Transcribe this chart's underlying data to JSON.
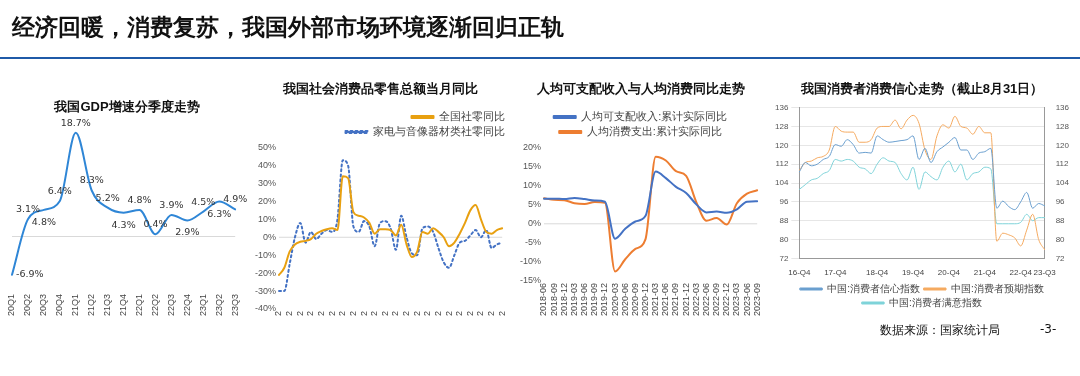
{
  "chart_data": [
    {
      "type": "other",
      "title": "经济回暖，消费复苏，我国外部市场环境逐渐回归正轨",
      "annotations": [
        "数据来源：国家统计局",
        "-3-"
      ]
    },
    {
      "type": "line",
      "title": "我国GDP增速分季度走势",
      "categories": [
        "20Q1",
        "20Q2",
        "20Q3",
        "20Q4",
        "21Q1",
        "21Q2",
        "21Q3",
        "21Q4",
        "22Q1",
        "22Q2",
        "22Q3",
        "22Q4",
        "23Q1",
        "23Q2",
        "23Q3"
      ],
      "color": "#2f86d6",
      "values": [
        -6.9,
        3.1,
        4.8,
        6.4,
        18.7,
        8.3,
        5.2,
        4.3,
        4.8,
        0.4,
        3.9,
        2.9,
        4.5,
        6.3,
        4.9
      ],
      "value_labels": [
        "-6.9%",
        "3.1%",
        "4.8%",
        "6.4%",
        "18.7%",
        "8.3%",
        "5.2%",
        "4.3%",
        "4.8%",
        "0.4%",
        "3.9%",
        "2.9%",
        "4.5%",
        "6.3%",
        "4.9%"
      ],
      "ref_lines": [
        {
          "axis": "y",
          "value": 0,
          "color": "#d9d9d9"
        }
      ],
      "tick_labels": "x"
    },
    {
      "type": "line",
      "title": "我国社会消费品零售总额当月同比",
      "categories": [
        "2",
        null,
        "2",
        null,
        "2",
        null,
        "2",
        null,
        "2",
        null,
        "2",
        null,
        "2",
        null,
        "2",
        null,
        "2",
        null,
        "2",
        null,
        "2",
        null,
        "2",
        null,
        "2",
        null,
        "2",
        null,
        "2",
        null,
        "2",
        null,
        "2",
        null,
        "2",
        null,
        "2",
        null,
        "2",
        null,
        "2",
        null,
        "2"
      ],
      "series": [
        {
          "name": "全国社零同比",
          "color": "#e8a010",
          "values": [
            -21,
            -17,
            -8,
            -4,
            -2.5,
            -2,
            -1,
            2,
            3.5,
            4.5,
            5,
            4,
            34,
            33,
            14,
            12,
            11,
            8,
            2,
            4.5,
            4.5,
            4,
            1,
            7,
            -4,
            -11,
            -8,
            3,
            2,
            5,
            3,
            0,
            -5,
            -3,
            2,
            8,
            15,
            18,
            10,
            3,
            2,
            4,
            5
          ]
        },
        {
          "name": "家电与音像器材类社零同比",
          "color": "#4472c4",
          "line_style": "dotted",
          "values": [
            -30,
            -30,
            -15,
            0,
            8,
            -3,
            3,
            -1,
            2,
            4,
            3,
            10,
            43,
            40,
            6,
            3,
            9,
            6,
            -5,
            8,
            9,
            5,
            -7,
            12,
            0,
            -9,
            -10,
            5,
            6,
            3,
            -6,
            -14,
            -17,
            -10,
            -3,
            -2,
            1,
            4,
            0,
            4,
            -6,
            -4,
            -3
          ]
        }
      ],
      "ylim": [
        -40,
        50
      ],
      "yticks": [
        {
          "value": -40,
          "label": "-40%"
        },
        {
          "value": -30,
          "label": "-30%"
        },
        {
          "value": -20,
          "label": "-20%"
        },
        {
          "value": -10,
          "label": "-10%"
        },
        {
          "value": 0,
          "label": "0%"
        },
        {
          "value": 10,
          "label": "10%"
        },
        {
          "value": 20,
          "label": "20%"
        },
        {
          "value": 30,
          "label": "30%"
        },
        {
          "value": 40,
          "label": "40%"
        },
        {
          "value": 50,
          "label": "50%"
        }
      ],
      "ref_lines": [
        {
          "axis": "y",
          "value": 0,
          "color": "#d9d9d9"
        }
      ],
      "legend": "top right"
    },
    {
      "type": "line",
      "title": "人均可支配收入与人均消费同比走势",
      "categories": [
        "2018-06",
        "2018-09",
        "2018-12",
        "2019-03",
        "2019-06",
        "2019-09",
        "2019-12",
        "2020-03",
        "2020-06",
        "2020-09",
        "2020-12",
        "2021-03",
        "2021-06",
        "2021-09",
        "2021-12",
        "2022-03",
        "2022-06",
        "2022-09",
        "2022-12",
        "2023-03",
        "2023-06",
        "2023-09"
      ],
      "series": [
        {
          "name": "人均可支配收入:累计实际同比",
          "color": "#4472c4",
          "values": [
            6.6,
            6.6,
            6.5,
            6.8,
            6.5,
            6.1,
            5.8,
            -3.9,
            -1.3,
            0.6,
            2.1,
            13.7,
            12.0,
            9.7,
            8.1,
            5.1,
            3.0,
            3.2,
            2.9,
            3.8,
            5.8,
            5.9
          ]
        },
        {
          "name": "人均消费支出:累计实际同比",
          "color": "#ed7d31",
          "values": [
            6.7,
            6.3,
            6.2,
            5.4,
            5.2,
            5.7,
            5.5,
            -12.5,
            -9.3,
            -6.6,
            -4.0,
            17.6,
            16.6,
            13.8,
            12.6,
            5.7,
            0.8,
            1.5,
            -0.2,
            5.4,
            7.9,
            8.8
          ]
        }
      ],
      "ylim": [
        -15,
        20
      ],
      "yticks": [
        {
          "value": -15,
          "label": "-15%"
        },
        {
          "value": -10,
          "label": "-10%"
        },
        {
          "value": -5,
          "label": "-5%"
        },
        {
          "value": 0,
          "label": "0%"
        },
        {
          "value": 5,
          "label": "5%"
        },
        {
          "value": 10,
          "label": "10%"
        },
        {
          "value": 15,
          "label": "15%"
        },
        {
          "value": 20,
          "label": "20%"
        }
      ],
      "ref_lines": [
        {
          "axis": "y",
          "value": 0,
          "color": "#d9d9d9"
        }
      ],
      "legend": "top"
    },
    {
      "type": "line",
      "title": "我国消费者消费信心走势（截止8月31日）",
      "categories": [
        "16-Q4",
        null,
        null,
        null,
        null,
        null,
        "17-Q4",
        null,
        null,
        null,
        null,
        null,
        null,
        "18-Q4",
        null,
        null,
        null,
        null,
        null,
        "19-Q4",
        null,
        null,
        null,
        null,
        null,
        "20-Q4",
        null,
        null,
        null,
        null,
        null,
        "21-Q4",
        null,
        null,
        null,
        null,
        null,
        "22-Q4",
        null,
        null,
        null,
        "23-Q3"
      ],
      "series": [
        {
          "name": "中国:消费者信心指数",
          "color": "#6a9fcf",
          "values": [
            108.7,
            112.7,
            111.3,
            112,
            114,
            115.3,
            120.3,
            119.6,
            122.4,
            120.3,
            116.7,
            117,
            116.7,
            124,
            122.4,
            121.3,
            121.6,
            122,
            122.4,
            124,
            114,
            118.7,
            112.7,
            117.3,
            119.3,
            121.3,
            123.3,
            118,
            118,
            114,
            116.7,
            117.3,
            118.7,
            93.3,
            96.3,
            94,
            92.7,
            96,
            100,
            93.3,
            95.3,
            94.3
          ]
        },
        {
          "name": "中国:消费者预期指数",
          "color": "#f5aa60",
          "values": [
            109.3,
            112.7,
            113.3,
            114.7,
            115.3,
            118,
            128,
            126,
            125.6,
            125.6,
            121.3,
            121.3,
            122.4,
            127.3,
            128,
            128,
            130.7,
            127,
            130.7,
            132.7,
            129.3,
            118,
            114,
            124,
            128.7,
            127.3,
            132.3,
            128,
            127.3,
            124.7,
            128,
            125.3,
            125.3,
            79.3,
            82.7,
            82,
            80.7,
            77.3,
            84,
            90.7,
            80,
            75.7
          ]
        },
        {
          "name": "中国:消费者满意指数",
          "color": "#7fd3d9",
          "values": [
            101.3,
            103.3,
            105.3,
            106,
            108,
            109.3,
            114,
            113.3,
            114,
            113.3,
            110.7,
            110,
            108,
            112,
            114.7,
            113.3,
            112.7,
            108,
            105.3,
            110.7,
            101.3,
            108.7,
            106.7,
            105.3,
            110.7,
            113.3,
            108.7,
            112,
            105.3,
            108,
            108.7,
            110.7,
            110,
            86.7,
            86.7,
            86.7,
            86.7,
            87.3,
            90.7,
            88,
            89.3,
            89.3
          ]
        }
      ],
      "ylim": [
        72,
        136
      ],
      "yticks": [
        72,
        80,
        88,
        96,
        104,
        112,
        120,
        128,
        136
      ],
      "y2lim": [
        72,
        136
      ],
      "y2ticks": [
        72,
        80,
        88,
        96,
        104,
        112,
        120,
        128,
        136
      ],
      "grid": "y",
      "legend": "bottom"
    }
  ]
}
